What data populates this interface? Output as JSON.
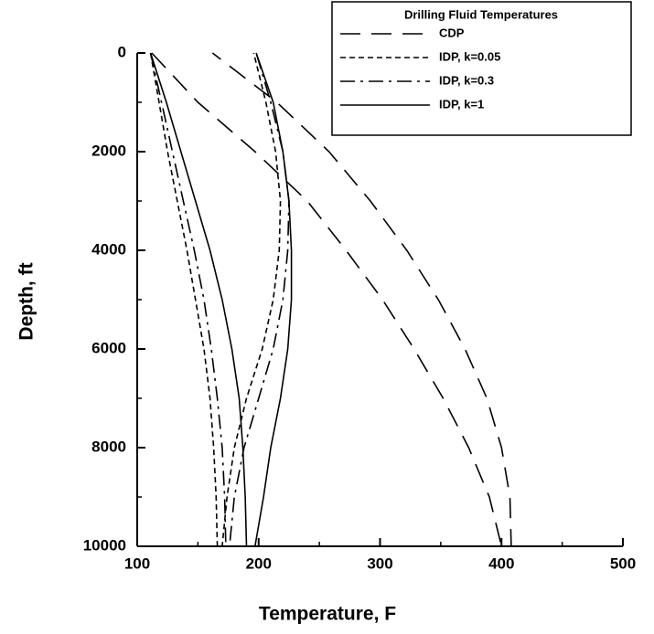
{
  "chart_data": {
    "type": "line",
    "xlabel": "Temperature, F",
    "ylabel": "Depth, ft",
    "xlim": [
      100,
      500
    ],
    "xticks": [
      100,
      200,
      300,
      400,
      500
    ],
    "xticks_minor": [
      150,
      250,
      350,
      450
    ],
    "ylim": [
      0,
      10000
    ],
    "yticks": [
      0,
      2000,
      4000,
      6000,
      8000,
      10000
    ],
    "yticks_minor": [
      1000,
      3000,
      5000,
      7000,
      9000
    ],
    "y_inverted": true,
    "color": "#000000",
    "legend": {
      "title": "Drilling Fluid Temperatures",
      "position": "upper right"
    },
    "series": [
      {
        "name": "CDP",
        "dash": "22,12",
        "x": [
          112,
          150,
          197,
          240,
          272,
          302,
          328,
          352,
          373,
          390,
          400,
          408,
          407,
          400,
          388,
          370,
          348,
          322,
          292,
          258,
          215,
          162
        ],
        "y": [
          0,
          1000,
          2000,
          3000,
          4000,
          5000,
          6000,
          7000,
          8000,
          9000,
          10000,
          10000,
          9000,
          8000,
          7000,
          6000,
          5000,
          4000,
          3000,
          2000,
          1000,
          0
        ]
      },
      {
        "name": "IDP, k=0.05",
        "dash": "6,4",
        "x": [
          111,
          118,
          125,
          133,
          141,
          148,
          155,
          160,
          163,
          165,
          166,
          170,
          174,
          180,
          190,
          203,
          212,
          217,
          218,
          214,
          206,
          196
        ],
        "y": [
          0,
          1000,
          2000,
          3000,
          4000,
          5000,
          6000,
          7000,
          8000,
          9000,
          10000,
          10000,
          9000,
          8000,
          7000,
          6000,
          5000,
          4000,
          3000,
          2000,
          1000,
          0
        ]
      },
      {
        "name": "IDP, k=0.3",
        "dash": "16,6,3,6",
        "x": [
          111,
          120,
          129,
          138,
          147,
          155,
          161,
          166,
          170,
          172,
          173,
          176,
          180,
          188,
          200,
          212,
          220,
          224,
          225,
          220,
          210,
          198
        ],
        "y": [
          0,
          1000,
          2000,
          3000,
          4000,
          5000,
          6000,
          7000,
          8000,
          9000,
          10000,
          10000,
          9000,
          8000,
          7000,
          6000,
          5000,
          4000,
          3000,
          2000,
          1000,
          0
        ]
      },
      {
        "name": "IDP, k=1",
        "dash": "none",
        "x": [
          111,
          124,
          136,
          148,
          160,
          170,
          178,
          184,
          187,
          189,
          190,
          197,
          204,
          210,
          218,
          224,
          227,
          227,
          225,
          220,
          212,
          198
        ],
        "y": [
          0,
          1000,
          2000,
          3000,
          4000,
          5000,
          6000,
          7000,
          8000,
          9000,
          10000,
          10000,
          9000,
          8000,
          7000,
          6000,
          5000,
          4000,
          3000,
          2000,
          1000,
          0
        ]
      }
    ]
  }
}
